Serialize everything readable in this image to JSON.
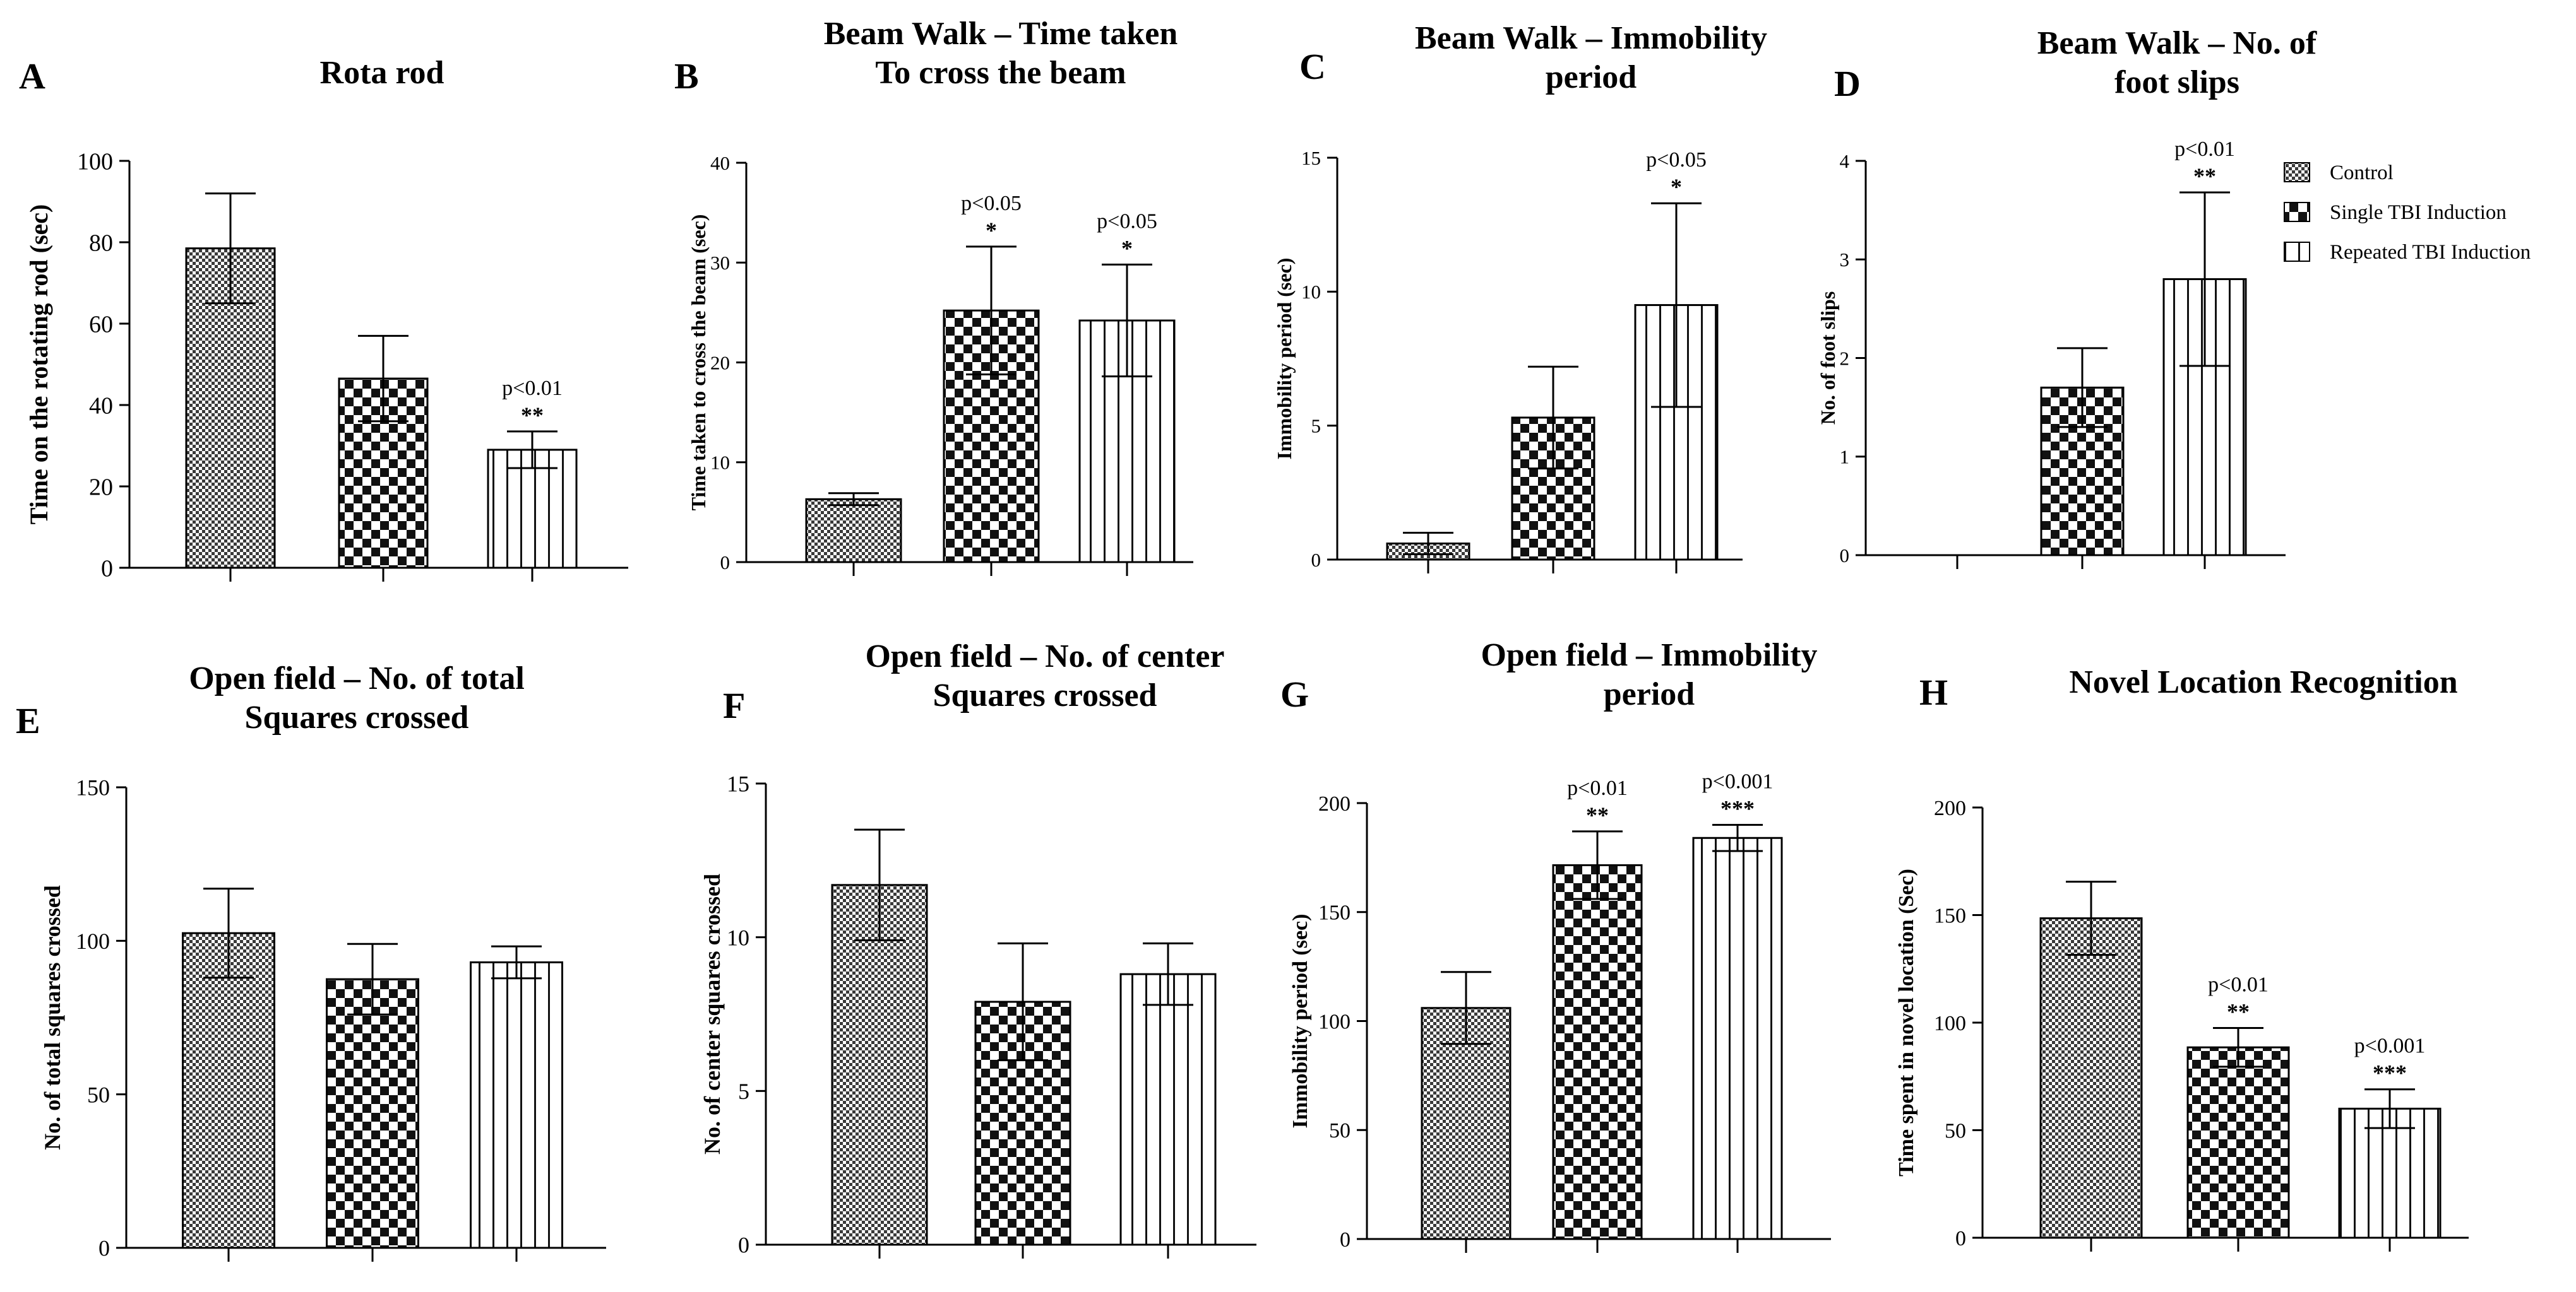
{
  "legend": [
    {
      "key": "control",
      "label": "Control"
    },
    {
      "key": "single",
      "label": "Single TBI Induction"
    },
    {
      "key": "repeated",
      "label": "Repeated TBI Induction"
    }
  ],
  "chart_data": [
    {
      "type": "bar",
      "panel": "A",
      "title_lines": [
        "Rota rod"
      ],
      "ylabel": "Time on the rotating rod (sec)",
      "ylim": [
        0,
        100
      ],
      "yticks": [
        0,
        20,
        40,
        60,
        80,
        100
      ],
      "categories": [
        "Control",
        "Single TBI Induction",
        "Repeated TBI Induction"
      ],
      "values": [
        78.5,
        46.5,
        29
      ],
      "errors": [
        13.5,
        10.5,
        4.5
      ],
      "stars": [
        "",
        "",
        "**"
      ],
      "pvalues": [
        "",
        "",
        "p<0.01"
      ]
    },
    {
      "type": "bar",
      "panel": "B",
      "title_lines": [
        "Beam Walk – Time taken",
        "To cross the beam"
      ],
      "ylabel": "Time taken to cross the beam (sec)",
      "ylim": [
        0,
        40
      ],
      "yticks": [
        0,
        10,
        20,
        30,
        40
      ],
      "categories": [
        "Control",
        "Single TBI Induction",
        "Repeated TBI Induction"
      ],
      "values": [
        6.3,
        25.2,
        24.2
      ],
      "errors": [
        0.6,
        6.4,
        5.6
      ],
      "stars": [
        "",
        "*",
        "*"
      ],
      "pvalues": [
        "",
        "p<0.05",
        "p<0.05"
      ]
    },
    {
      "type": "bar",
      "panel": "C",
      "title_lines": [
        "Beam Walk – Immobility",
        "period"
      ],
      "ylabel": "Immobility period (sec)",
      "ylim": [
        0,
        15
      ],
      "yticks": [
        0,
        5,
        10,
        15
      ],
      "categories": [
        "Control",
        "Single TBI Induction",
        "Repeated TBI Induction"
      ],
      "values": [
        0.6,
        5.3,
        9.5
      ],
      "errors": [
        0.4,
        1.9,
        3.8
      ],
      "stars": [
        "",
        "",
        "*"
      ],
      "pvalues": [
        "",
        "",
        "p<0.05"
      ]
    },
    {
      "type": "bar",
      "panel": "D",
      "title_lines": [
        "Beam Walk – No. of",
        "foot slips"
      ],
      "ylabel": "No. of foot slips",
      "ylim": [
        0,
        4
      ],
      "yticks": [
        0,
        1,
        2,
        3,
        4
      ],
      "categories": [
        "Control",
        "Single TBI Induction",
        "Repeated TBI Induction"
      ],
      "values": [
        0,
        1.7,
        2.8
      ],
      "errors": [
        0,
        0.4,
        0.88
      ],
      "stars": [
        "",
        "",
        "**"
      ],
      "pvalues": [
        "",
        "",
        "p<0.01"
      ]
    },
    {
      "type": "bar",
      "panel": "E",
      "title_lines": [
        "Open field – No. of total",
        "Squares crossed"
      ],
      "ylabel": "No. of total squares crossed",
      "ylim": [
        0,
        150
      ],
      "yticks": [
        0,
        50,
        100,
        150
      ],
      "categories": [
        "Control",
        "Single TBI Induction",
        "Repeated TBI Induction"
      ],
      "values": [
        102.5,
        87.5,
        93
      ],
      "errors": [
        14.5,
        11.5,
        5.2
      ],
      "stars": [
        "",
        "",
        ""
      ],
      "pvalues": [
        "",
        "",
        ""
      ]
    },
    {
      "type": "bar",
      "panel": "F",
      "title_lines": [
        "Open field – No. of center",
        "Squares crossed"
      ],
      "ylabel": "No. of center squares crossed",
      "ylim": [
        0,
        15
      ],
      "yticks": [
        0,
        5,
        10,
        15
      ],
      "categories": [
        "Control",
        "Single TBI Induction",
        "Repeated TBI Induction"
      ],
      "values": [
        11.7,
        7.9,
        8.8
      ],
      "errors": [
        1.8,
        1.9,
        1.0
      ],
      "stars": [
        "",
        "",
        ""
      ],
      "pvalues": [
        "",
        "",
        ""
      ]
    },
    {
      "type": "bar",
      "panel": "G",
      "title_lines": [
        "Open field – Immobility",
        "period"
      ],
      "ylabel": "Immobility period (sec)",
      "ylim": [
        0,
        200
      ],
      "yticks": [
        0,
        50,
        100,
        150,
        200
      ],
      "categories": [
        "Control",
        "Single TBI Induction",
        "Repeated TBI Induction"
      ],
      "values": [
        106,
        171.5,
        184
      ],
      "errors": [
        16.5,
        15.5,
        6
      ],
      "stars": [
        "",
        "**",
        "***"
      ],
      "pvalues": [
        "",
        "p<0.01",
        "p<0.001"
      ]
    },
    {
      "type": "bar",
      "panel": "H",
      "title_lines": [
        "Novel Location Recognition"
      ],
      "ylabel": "Time spent in novel location (Sec)",
      "ylim": [
        0,
        200
      ],
      "yticks": [
        0,
        50,
        100,
        150,
        200
      ],
      "categories": [
        "Control",
        "Single TBI Induction",
        "Repeated TBI Induction"
      ],
      "values": [
        148.5,
        88.5,
        60
      ],
      "errors": [
        17,
        9,
        9
      ],
      "stars": [
        "",
        "**",
        "***"
      ],
      "pvalues": [
        "",
        "p<0.01",
        "p<0.001"
      ]
    }
  ]
}
